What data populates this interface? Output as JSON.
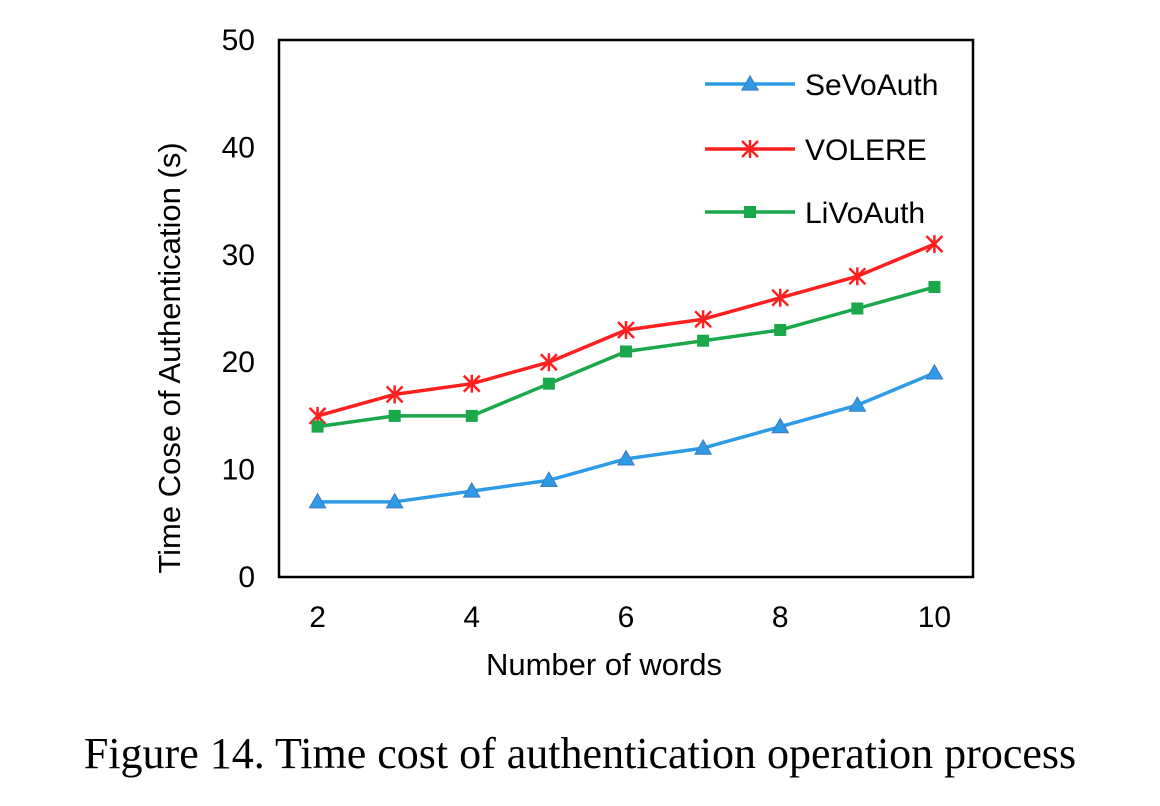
{
  "caption": "Figure 14. Time cost of authentication operation process",
  "chart_data": {
    "type": "line",
    "title": "",
    "xlabel": "Number of words",
    "ylabel": "Time Cose of Authentication (s)",
    "x": [
      2,
      3,
      4,
      5,
      6,
      7,
      8,
      9,
      10
    ],
    "xticks": [
      2,
      4,
      6,
      8,
      10
    ],
    "xlim": [
      1.5,
      10.5
    ],
    "ylim": [
      0,
      50
    ],
    "yticks": [
      0,
      10,
      20,
      30,
      40,
      50
    ],
    "grid": false,
    "legend": "top-right",
    "series": [
      {
        "name": "SeVoAuth",
        "color": "#2e9be6",
        "marker": "triangle",
        "values": [
          7,
          7,
          8,
          9,
          11,
          12,
          14,
          16,
          19
        ]
      },
      {
        "name": "VOLERE",
        "color": "#ff1f1f",
        "marker": "star",
        "values": [
          15,
          17,
          18,
          20,
          23,
          24,
          26,
          28,
          31
        ]
      },
      {
        "name": "LiVoAuth",
        "color": "#1aa84a",
        "marker": "square",
        "values": [
          14,
          15,
          15,
          18,
          21,
          22,
          23,
          25,
          27
        ]
      }
    ]
  }
}
